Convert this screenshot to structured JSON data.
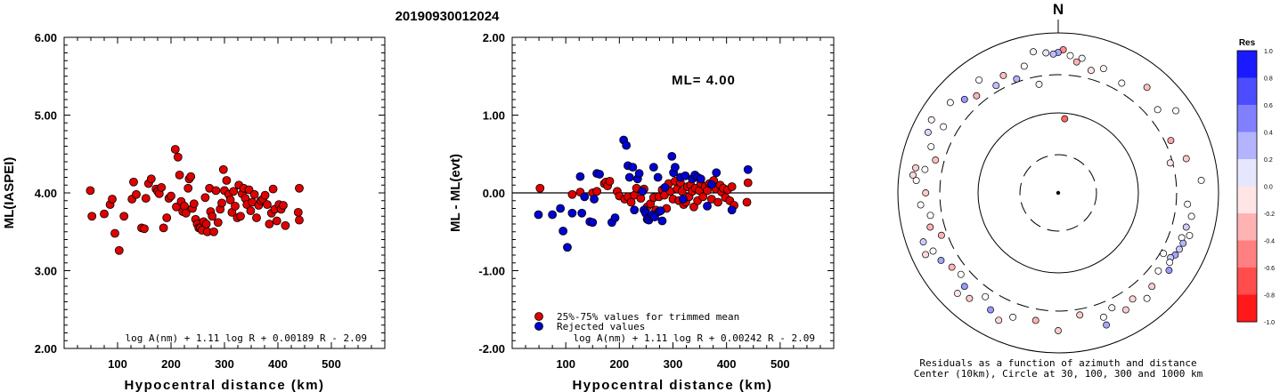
{
  "title": "20190930012024",
  "chart_data": [
    {
      "type": "scatter",
      "xlabel": "Hypocentral distance (km)",
      "ylabel": "ML(IASPEI)",
      "xlim": [
        0,
        600
      ],
      "ylim": [
        2.0,
        6.0
      ],
      "x_ticks": [
        "100",
        "200",
        "300",
        "400",
        "500"
      ],
      "y_ticks": [
        "2.00",
        "3.00",
        "4.00",
        "5.00",
        "6.00"
      ],
      "formula": "log A(nm) + 1.11 log R + 0.00189 R - 2.09",
      "marker_color": "#e00000",
      "points": [
        [
          49,
          4.03
        ],
        [
          52,
          3.7
        ],
        [
          75,
          3.73
        ],
        [
          86,
          3.85
        ],
        [
          90,
          3.92
        ],
        [
          95,
          3.48
        ],
        [
          103,
          3.26
        ],
        [
          112,
          3.7
        ],
        [
          127,
          3.92
        ],
        [
          130,
          4.14
        ],
        [
          135,
          3.98
        ],
        [
          145,
          3.55
        ],
        [
          150,
          3.54
        ],
        [
          153,
          3.93
        ],
        [
          158,
          4.12
        ],
        [
          163,
          4.18
        ],
        [
          172,
          4.05
        ],
        [
          175,
          4.02
        ],
        [
          178,
          3.99
        ],
        [
          182,
          4.07
        ],
        [
          186,
          3.55
        ],
        [
          192,
          3.68
        ],
        [
          196,
          3.93
        ],
        [
          200,
          3.96
        ],
        [
          208,
          4.56
        ],
        [
          210,
          3.82
        ],
        [
          213,
          4.46
        ],
        [
          216,
          4.23
        ],
        [
          219,
          3.89
        ],
        [
          222,
          3.76
        ],
        [
          225,
          3.83
        ],
        [
          228,
          3.74
        ],
        [
          232,
          4.06
        ],
        [
          234,
          4.18
        ],
        [
          237,
          4.21
        ],
        [
          240,
          3.8
        ],
        [
          243,
          3.86
        ],
        [
          246,
          3.66
        ],
        [
          249,
          3.6
        ],
        [
          252,
          3.55
        ],
        [
          255,
          3.55
        ],
        [
          258,
          3.52
        ],
        [
          261,
          3.63
        ],
        [
          264,
          3.94
        ],
        [
          266,
          3.6
        ],
        [
          268,
          3.5
        ],
        [
          272,
          4.06
        ],
        [
          274,
          3.76
        ],
        [
          277,
          3.7
        ],
        [
          280,
          3.5
        ],
        [
          284,
          4.03
        ],
        [
          288,
          3.62
        ],
        [
          292,
          3.79
        ],
        [
          295,
          3.87
        ],
        [
          298,
          4.3
        ],
        [
          300,
          4.03
        ],
        [
          304,
          4.16
        ],
        [
          308,
          3.98
        ],
        [
          311,
          3.91
        ],
        [
          314,
          3.75
        ],
        [
          317,
          4.02
        ],
        [
          320,
          3.83
        ],
        [
          324,
          3.68
        ],
        [
          327,
          4.1
        ],
        [
          330,
          3.7
        ],
        [
          333,
          3.99
        ],
        [
          336,
          4.06
        ],
        [
          339,
          3.93
        ],
        [
          342,
          3.85
        ],
        [
          346,
          4.04
        ],
        [
          349,
          3.77
        ],
        [
          352,
          3.88
        ],
        [
          356,
          3.98
        ],
        [
          360,
          3.68
        ],
        [
          364,
          3.84
        ],
        [
          368,
          3.9
        ],
        [
          372,
          3.92
        ],
        [
          376,
          3.97
        ],
        [
          380,
          3.85
        ],
        [
          384,
          3.6
        ],
        [
          388,
          3.74
        ],
        [
          391,
          4.05
        ],
        [
          394,
          3.79
        ],
        [
          398,
          3.64
        ],
        [
          402,
          3.85
        ],
        [
          406,
          3.79
        ],
        [
          410,
          3.84
        ],
        [
          414,
          3.58
        ],
        [
          438,
          3.75
        ],
        [
          440,
          3.65
        ],
        [
          440,
          4.06
        ]
      ]
    },
    {
      "type": "scatter",
      "xlabel": "Hypocentral distance (km)",
      "ylabel": "ML - ML(evt)",
      "xlim": [
        0,
        600
      ],
      "ylim": [
        -2.0,
        2.0
      ],
      "x_ticks": [
        "100",
        "200",
        "300",
        "400",
        "500"
      ],
      "y_ticks": [
        "-2.00",
        "-1.00",
        "0.00",
        "1.00",
        "2.00"
      ],
      "annotation": "ML= 4.00",
      "formula": "log A(nm) + 1.11 log R + 0.00242 R - 2.09",
      "reference_line": 0.0,
      "legend": {
        "trimmed_label": "25%-75% values for trimmed mean",
        "trimmed_color": "#e00000",
        "rejected_label": "Rejected values",
        "rejected_color": "#0000d0"
      },
      "trimmed_points": [
        [
          52,
          0.06
        ],
        [
          112,
          -0.02
        ],
        [
          127,
          0.01
        ],
        [
          150,
          0.0
        ],
        [
          158,
          0.02
        ],
        [
          172,
          0.12
        ],
        [
          175,
          0.14
        ],
        [
          178,
          0.09
        ],
        [
          182,
          0.15
        ],
        [
          196,
          0.02
        ],
        [
          200,
          -0.04
        ],
        [
          210,
          -0.08
        ],
        [
          216,
          -0.05
        ],
        [
          222,
          -0.12
        ],
        [
          228,
          -0.03
        ],
        [
          232,
          0.06
        ],
        [
          240,
          -0.07
        ],
        [
          246,
          0.05
        ],
        [
          252,
          -0.18
        ],
        [
          258,
          -0.14
        ],
        [
          264,
          -0.06
        ],
        [
          268,
          -0.22
        ],
        [
          274,
          -0.05
        ],
        [
          280,
          0.04
        ],
        [
          284,
          -0.03
        ],
        [
          288,
          -0.2
        ],
        [
          292,
          0.12
        ],
        [
          295,
          0.02
        ],
        [
          300,
          -0.08
        ],
        [
          304,
          0.15
        ],
        [
          308,
          0.05
        ],
        [
          311,
          -0.1
        ],
        [
          314,
          0.13
        ],
        [
          317,
          0.02
        ],
        [
          320,
          -0.15
        ],
        [
          324,
          -0.12
        ],
        [
          327,
          0.08
        ],
        [
          330,
          -0.05
        ],
        [
          333,
          0.1
        ],
        [
          336,
          0.02
        ],
        [
          339,
          -0.18
        ],
        [
          342,
          0.06
        ],
        [
          346,
          -0.1
        ],
        [
          349,
          0.03
        ],
        [
          352,
          0.12
        ],
        [
          356,
          -0.05
        ],
        [
          360,
          0.08
        ],
        [
          364,
          0.03
        ],
        [
          368,
          0.12
        ],
        [
          372,
          -0.08
        ],
        [
          376,
          0.16
        ],
        [
          380,
          0.05
        ],
        [
          384,
          -0.12
        ],
        [
          388,
          0.1
        ],
        [
          391,
          0.01
        ],
        [
          394,
          0.06
        ],
        [
          398,
          -0.06
        ],
        [
          402,
          0.04
        ],
        [
          406,
          -0.1
        ],
        [
          410,
          0.08
        ],
        [
          414,
          -0.16
        ],
        [
          438,
          -0.12
        ],
        [
          440,
          0.13
        ]
      ],
      "rejected_points": [
        [
          49,
          -0.28
        ],
        [
          75,
          -0.28
        ],
        [
          90,
          -0.2
        ],
        [
          95,
          -0.49
        ],
        [
          103,
          -0.7
        ],
        [
          112,
          -0.26
        ],
        [
          127,
          0.21
        ],
        [
          130,
          -0.26
        ],
        [
          135,
          -0.05
        ],
        [
          145,
          -0.37
        ],
        [
          150,
          -0.38
        ],
        [
          153,
          -0.08
        ],
        [
          158,
          0.25
        ],
        [
          163,
          0.24
        ],
        [
          186,
          -0.38
        ],
        [
          192,
          -0.32
        ],
        [
          208,
          0.68
        ],
        [
          213,
          0.61
        ],
        [
          216,
          0.35
        ],
        [
          219,
          0.2
        ],
        [
          225,
          0.33
        ],
        [
          228,
          -0.22
        ],
        [
          234,
          0.18
        ],
        [
          237,
          0.25
        ],
        [
          243,
          0.02
        ],
        [
          246,
          -0.22
        ],
        [
          249,
          -0.26
        ],
        [
          252,
          -0.34
        ],
        [
          255,
          -0.35
        ],
        [
          258,
          -0.3
        ],
        [
          261,
          -0.28
        ],
        [
          264,
          0.33
        ],
        [
          266,
          -0.31
        ],
        [
          272,
          0.2
        ],
        [
          274,
          -0.24
        ],
        [
          277,
          -0.23
        ],
        [
          280,
          -0.36
        ],
        [
          285,
          0.07
        ],
        [
          298,
          0.47
        ],
        [
          301,
          0.26
        ],
        [
          304,
          0.33
        ],
        [
          314,
          0.2
        ],
        [
          319,
          -0.08
        ],
        [
          323,
          0.22
        ],
        [
          336,
          0.18
        ],
        [
          341,
          0.23
        ],
        [
          346,
          0.2
        ],
        [
          352,
          0.18
        ],
        [
          364,
          -0.17
        ],
        [
          372,
          0.11
        ],
        [
          381,
          0.26
        ],
        [
          410,
          -0.22
        ],
        [
          440,
          0.3
        ]
      ]
    },
    {
      "type": "polar",
      "north_label": "N",
      "caption_line1": "Residuals as a function of azimuth and distance",
      "caption_line2": "Center (10km), Circle at 30, 100, 300 and 1000 km",
      "colorbar_title": "Res",
      "colorbar_ticks": [
        "1.0",
        "0.8",
        "0.6",
        "0.4",
        "0.2",
        "0.0",
        "-0.2",
        "-0.4",
        "-0.6",
        "-0.8",
        "-1.0"
      ],
      "range_km": [
        10,
        1000
      ],
      "circles_km": [
        30,
        100,
        300,
        1000
      ],
      "stations": [
        [
          5,
          250,
          0.0
        ],
        [
          2,
          260,
          -0.45
        ],
        [
          8,
          240,
          -0.3
        ],
        [
          355,
          255,
          0.1
        ],
        [
          0,
          255,
          0.35
        ],
        [
          358,
          252,
          0.25
        ],
        [
          10,
          248,
          0.05
        ],
        [
          345,
          238,
          0.0
        ],
        [
          350,
          260,
          -0.05
        ],
        [
          15,
          230,
          -0.1
        ],
        [
          20,
          240,
          -0.05
        ],
        [
          340,
          220,
          0.3
        ],
        [
          335,
          235,
          -0.25
        ],
        [
          330,
          225,
          0.25
        ],
        [
          325,
          250,
          0.0
        ],
        [
          315,
          240,
          0.4
        ],
        [
          310,
          255,
          0.0
        ],
        [
          300,
          265,
          -0.05
        ],
        [
          320,
          230,
          -0.3
        ],
        [
          30,
          230,
          0.0
        ],
        [
          40,
          250,
          -0.25
        ],
        [
          50,
          235,
          0.0
        ],
        [
          55,
          260,
          0.0
        ],
        [
          65,
          225,
          -0.35
        ],
        [
          75,
          240,
          -0.2
        ],
        [
          85,
          260,
          0.0
        ],
        [
          95,
          235,
          0.0
        ],
        [
          100,
          245,
          0.0
        ],
        [
          105,
          240,
          0.2
        ],
        [
          108,
          250,
          0.0
        ],
        [
          110,
          238,
          0.0
        ],
        [
          112,
          244,
          0.3
        ],
        [
          115,
          242,
          0.2
        ],
        [
          118,
          240,
          0.35
        ],
        [
          120,
          235,
          0.2
        ],
        [
          122,
          238,
          0.0
        ],
        [
          125,
          245,
          0.4
        ],
        [
          128,
          230,
          0.0
        ],
        [
          135,
          240,
          -0.2
        ],
        [
          140,
          250,
          0.0
        ],
        [
          145,
          235,
          -0.15
        ],
        [
          150,
          245,
          -0.2
        ],
        [
          155,
          230,
          -0.05
        ],
        [
          160,
          240,
          0.0
        ],
        [
          170,
          225,
          -0.2
        ],
        [
          190,
          235,
          -0.3
        ],
        [
          200,
          240,
          0.0
        ],
        [
          210,
          245,
          0.4
        ],
        [
          215,
          230,
          0.0
        ],
        [
          220,
          250,
          -0.2
        ],
        [
          225,
          240,
          0.4
        ],
        [
          230,
          230,
          0.0
        ],
        [
          235,
          235,
          -0.3
        ],
        [
          240,
          245,
          0.35
        ],
        [
          245,
          250,
          0.0
        ],
        [
          250,
          225,
          -0.3
        ],
        [
          255,
          240,
          -0.3
        ],
        [
          260,
          235,
          0.0
        ],
        [
          265,
          250,
          0.0
        ],
        [
          270,
          240,
          -0.2
        ],
        [
          275,
          258,
          0.0
        ],
        [
          280,
          245,
          0.0
        ],
        [
          285,
          230,
          -0.25
        ],
        [
          290,
          245,
          0.0
        ],
        [
          295,
          260,
          0.15
        ],
        [
          300,
          240,
          0.0
        ],
        [
          250,
          260,
          0.2
        ],
        [
          245,
          265,
          -0.15
        ],
        [
          280,
          262,
          -0.2
        ],
        [
          277,
          265,
          -0.15
        ],
        [
          75,
          210,
          -0.1
        ],
        [
          120,
          220,
          0.0
        ],
        [
          5,
          135,
          -0.6
        ],
        [
          350,
          200,
          -0.05
        ],
        [
          225,
          258,
          -0.1
        ],
        [
          205,
          255,
          -0.15
        ],
        [
          160,
          255,
          0.35
        ],
        [
          180,
          250,
          -0.2
        ]
      ]
    }
  ]
}
